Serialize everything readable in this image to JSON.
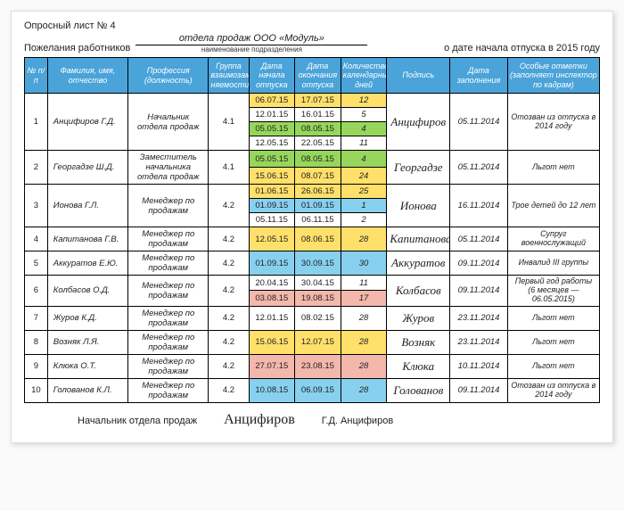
{
  "header": {
    "line1": "Опросный лист № 4",
    "line2_left": "Пожелания работников",
    "department": "отдела продаж ООО «Модуль»",
    "dept_caption": "наименование подразделения",
    "line2_right": "о дате начала отпуска в 2015 году"
  },
  "columns": {
    "c0": "№ п/п",
    "c1": "Фамилия, имя, отчество",
    "c2": "Профессия (должность)",
    "c3": "Группа взаимозаме-няемости",
    "c4": "Дата начала отпуска",
    "c5": "Дата окончания отпуска",
    "c6": "Количество календарных дней",
    "c7": "Подпись",
    "c8": "Дата заполнения",
    "c9": "Особые отметки (заполняет инспектор по кадрам)"
  },
  "col_widths_pct": [
    4,
    14,
    14,
    7,
    8,
    8,
    8,
    11,
    10,
    16
  ],
  "colors": {
    "header_bg": "#4aa3d9",
    "yellow": "#ffe06b",
    "green": "#97d65c",
    "blue": "#87d1ef",
    "pink": "#f3b7ab",
    "plain": "#ffffff"
  },
  "rows": [
    {
      "n": "1",
      "name": "Анцифиров Г.Д.",
      "pos": "Начальник отдела продаж",
      "grp": "4.1",
      "periods": [
        {
          "start": "06.07.15",
          "end": "17.07.15",
          "days": "12",
          "c": "yellow"
        },
        {
          "start": "12.01.15",
          "end": "16.01.15",
          "days": "5",
          "c": "plain"
        },
        {
          "start": "05.05.15",
          "end": "08.05.15",
          "days": "4",
          "c": "green"
        },
        {
          "start": "12.05.15",
          "end": "22.05.15",
          "days": "11",
          "c": "plain"
        }
      ],
      "sign": "Анцифиров",
      "fill": "05.11.2014",
      "note": "Отозван из отпуска в 2014 году"
    },
    {
      "n": "2",
      "name": "Георгадзе Ш.Д.",
      "pos": "Заместитель начальника отдела продаж",
      "grp": "4.1",
      "periods": [
        {
          "start": "05.05.15",
          "end": "08.05.15",
          "days": "4",
          "c": "green"
        },
        {
          "start": "15.06.15",
          "end": "08.07.15",
          "days": "24",
          "c": "yellow"
        }
      ],
      "sign": "Георгадзе",
      "fill": "05.11.2014",
      "note": "Льгот нет"
    },
    {
      "n": "3",
      "name": "Ионова Г.Л.",
      "pos": "Менеджер по продажам",
      "grp": "4.2",
      "periods": [
        {
          "start": "01.06.15",
          "end": "26.06.15",
          "days": "25",
          "c": "yellow"
        },
        {
          "start": "01.09.15",
          "end": "01.09.15",
          "days": "1",
          "c": "blue"
        },
        {
          "start": "05.11.15",
          "end": "06.11.15",
          "days": "2",
          "c": "plain"
        }
      ],
      "sign": "Ионова",
      "fill": "16.11.2014",
      "note": "Трое детей до 12 лет"
    },
    {
      "n": "4",
      "name": "Капитанова Г.В.",
      "pos": "Менеджер по продажам",
      "grp": "4.2",
      "periods": [
        {
          "start": "12.05.15",
          "end": "08.06.15",
          "days": "28",
          "c": "yellow"
        }
      ],
      "sign": "Капитанова",
      "fill": "05.11.2014",
      "note": "Супруг военнослужащий"
    },
    {
      "n": "5",
      "name": "Аккуратов Е.Ю.",
      "pos": "Менеджер по продажам",
      "grp": "4.2",
      "periods": [
        {
          "start": "01.09.15",
          "end": "30.09.15",
          "days": "30",
          "c": "blue"
        }
      ],
      "sign": "Аккуратов",
      "fill": "09.11.2014",
      "note": "Инвалид III группы"
    },
    {
      "n": "6",
      "name": "Колбасов О.Д.",
      "pos": "Менеджер по продажам",
      "grp": "4.2",
      "periods": [
        {
          "start": "20.04.15",
          "end": "30.04.15",
          "days": "11",
          "c": "plain"
        },
        {
          "start": "03.08.15",
          "end": "19.08.15",
          "days": "17",
          "c": "pink"
        }
      ],
      "sign": "Колбасов",
      "fill": "09.11.2014",
      "note": "Первый год работы (6 месяцев — 06.05.2015)"
    },
    {
      "n": "7",
      "name": "Журов К.Д.",
      "pos": "Менеджер по продажам",
      "grp": "4.2",
      "periods": [
        {
          "start": "12.01.15",
          "end": "08.02.15",
          "days": "28",
          "c": "plain"
        }
      ],
      "sign": "Журов",
      "fill": "23.11.2014",
      "note": "Льгот нет"
    },
    {
      "n": "8",
      "name": "Возняк Л.Я.",
      "pos": "Менеджер по продажам",
      "grp": "4.2",
      "periods": [
        {
          "start": "15.06.15",
          "end": "12.07.15",
          "days": "28",
          "c": "yellow"
        }
      ],
      "sign": "Возняк",
      "fill": "23.11.2014",
      "note": "Льгот нет"
    },
    {
      "n": "9",
      "name": "Клюка О.Т.",
      "pos": "Менеджер по продажам",
      "grp": "4.2",
      "periods": [
        {
          "start": "27.07.15",
          "end": "23.08.15",
          "days": "28",
          "c": "pink"
        }
      ],
      "sign": "Клюка",
      "fill": "10.11.2014",
      "note": "Льгот нет"
    },
    {
      "n": "10",
      "name": "Голованов К.Л.",
      "pos": "Менеджер по продажам",
      "grp": "4.2",
      "periods": [
        {
          "start": "10.08.15",
          "end": "06.09.15",
          "days": "28",
          "c": "blue"
        }
      ],
      "sign": "Голованов",
      "fill": "09.11.2014",
      "note": "Отозван из отпуска в 2014 году"
    }
  ],
  "footer": {
    "role": "Начальник отдела продаж",
    "signature": "Анцифиров",
    "name": "Г.Д. Анцифиров"
  }
}
